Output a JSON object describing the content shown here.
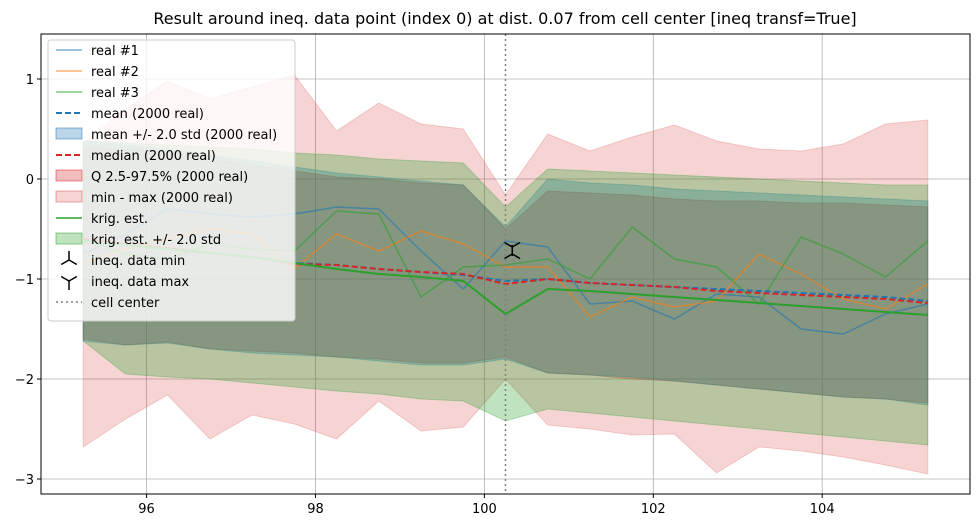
{
  "chart_data": {
    "type": "line",
    "title": "Result around ineq. data point (index 0) at dist. 0.07 from cell center [ineq transf=True]",
    "xlabel": "",
    "ylabel": "",
    "xlim": [
      94.75,
      105.75
    ],
    "ylim": [
      -3.15,
      1.45
    ],
    "xticks": [
      96,
      98,
      100,
      102,
      104
    ],
    "xtick_labels": [
      "96",
      "98",
      "100",
      "102",
      "104"
    ],
    "yticks": [
      1,
      0,
      -1,
      -2,
      -3
    ],
    "ytick_labels": [
      "1",
      "0",
      "−1",
      "−2",
      "−3"
    ],
    "grid": true,
    "legend_position": "top-left",
    "x": [
      95.25,
      95.75,
      96.25,
      96.75,
      97.25,
      97.75,
      98.25,
      98.75,
      99.25,
      99.75,
      100.25,
      100.75,
      101.25,
      101.75,
      102.25,
      102.75,
      103.25,
      103.75,
      104.25,
      104.75,
      105.25
    ],
    "series": [
      {
        "name": "real #1",
        "kind": "line",
        "color": "#1f77b4",
        "style": "solid",
        "alpha": 0.6,
        "values": [
          -0.75,
          -0.55,
          -0.3,
          -0.35,
          -0.38,
          -0.35,
          -0.28,
          -0.3,
          -0.72,
          -1.1,
          -0.62,
          -0.68,
          -1.25,
          -1.22,
          -1.4,
          -1.15,
          -1.18,
          -1.5,
          -1.55,
          -1.35,
          -1.25
        ]
      },
      {
        "name": "real #2",
        "kind": "line",
        "color": "#ff7f0e",
        "style": "solid",
        "alpha": 0.6,
        "values": [
          -0.85,
          -0.7,
          -0.6,
          -0.5,
          -0.55,
          -0.9,
          -0.55,
          -0.72,
          -0.52,
          -0.65,
          -0.88,
          -0.88,
          -1.38,
          -1.18,
          -1.28,
          -1.22,
          -0.75,
          -0.95,
          -1.2,
          -1.3,
          -1.05
        ]
      },
      {
        "name": "real #3",
        "kind": "line",
        "color": "#2ca02c",
        "style": "solid",
        "alpha": 0.6,
        "values": [
          -0.6,
          -0.75,
          -0.8,
          -0.65,
          -0.7,
          -0.72,
          -0.32,
          -0.35,
          -1.18,
          -0.88,
          -0.86,
          -0.8,
          -1.0,
          -0.48,
          -0.8,
          -0.88,
          -1.25,
          -0.58,
          -0.75,
          -0.98,
          -0.62
        ]
      },
      {
        "name": "mean (2000 real)",
        "kind": "line",
        "color": "#1f77b4",
        "style": "dashed",
        "alpha": 1,
        "values": [
          -0.62,
          -0.66,
          -0.7,
          -0.74,
          -0.78,
          -0.84,
          -0.86,
          -0.9,
          -0.93,
          -0.96,
          -1.02,
          -1.0,
          -1.04,
          -1.06,
          -1.08,
          -1.1,
          -1.12,
          -1.14,
          -1.16,
          -1.18,
          -1.22
        ]
      },
      {
        "name": "mean +/- 2.0 std (2000 real)",
        "kind": "band",
        "color": "#1f77b4",
        "alpha": 0.3,
        "lower": [
          -1.62,
          -1.66,
          -1.64,
          -1.7,
          -1.74,
          -1.76,
          -1.78,
          -1.82,
          -1.86,
          -1.86,
          -1.8,
          -1.94,
          -1.96,
          -1.98,
          -2.02,
          -2.06,
          -2.1,
          -2.14,
          -2.18,
          -2.2,
          -2.26
        ],
        "upper": [
          0.38,
          0.34,
          0.3,
          0.24,
          0.18,
          0.12,
          0.06,
          0.02,
          -0.02,
          -0.06,
          -0.48,
          0.0,
          -0.04,
          -0.06,
          -0.1,
          -0.12,
          -0.14,
          -0.16,
          -0.18,
          -0.2,
          -0.22
        ]
      },
      {
        "name": "median (2000 real)",
        "kind": "line",
        "color": "#d62728",
        "style": "dashed",
        "alpha": 1,
        "values": [
          -0.6,
          -0.65,
          -0.69,
          -0.74,
          -0.78,
          -0.85,
          -0.86,
          -0.9,
          -0.93,
          -0.95,
          -1.05,
          -1.0,
          -1.04,
          -1.06,
          -1.08,
          -1.12,
          -1.14,
          -1.16,
          -1.18,
          -1.2,
          -1.24
        ]
      },
      {
        "name": "Q 2.5-97.5% (2000 real)",
        "kind": "band",
        "color": "#d62728",
        "alpha": 0.3,
        "lower": [
          -1.6,
          -1.66,
          -1.63,
          -1.7,
          -1.72,
          -1.74,
          -1.78,
          -1.8,
          -1.84,
          -1.84,
          -1.78,
          -1.94,
          -1.96,
          -2.0,
          -2.02,
          -2.06,
          -2.1,
          -2.14,
          -2.18,
          -2.2,
          -2.24
        ],
        "upper": [
          0.32,
          0.3,
          0.28,
          0.2,
          0.14,
          0.08,
          0.02,
          0.0,
          -0.04,
          -0.06,
          -0.5,
          -0.12,
          -0.14,
          -0.16,
          -0.2,
          -0.22,
          -0.22,
          -0.24,
          -0.24,
          -0.26,
          -0.28
        ]
      },
      {
        "name": "min - max (2000 real)",
        "kind": "band",
        "color": "#d62728",
        "alpha": 0.2,
        "lower": [
          -2.68,
          -2.4,
          -2.16,
          -2.6,
          -2.36,
          -2.45,
          -2.6,
          -2.22,
          -2.52,
          -2.48,
          -2.0,
          -2.46,
          -2.5,
          -2.56,
          -2.55,
          -2.94,
          -2.68,
          -2.72,
          -2.78,
          -2.86,
          -2.95
        ],
        "upper": [
          0.36,
          0.7,
          0.98,
          0.8,
          0.92,
          1.04,
          0.48,
          0.76,
          0.55,
          0.5,
          -0.16,
          0.45,
          0.28,
          0.42,
          0.54,
          0.38,
          0.3,
          0.28,
          0.35,
          0.55,
          0.59
        ]
      },
      {
        "name": "krig. est.",
        "kind": "line",
        "color": "#2ca02c",
        "style": "solid",
        "alpha": 1,
        "values": [
          -0.62,
          -0.66,
          -0.7,
          -0.74,
          -0.78,
          -0.84,
          -0.9,
          -0.95,
          -0.98,
          -1.02,
          -1.35,
          -1.1,
          -1.12,
          -1.15,
          -1.18,
          -1.21,
          -1.24,
          -1.27,
          -1.3,
          -1.33,
          -1.36
        ]
      },
      {
        "name": "krig. est. +/- 2.0 std",
        "kind": "band",
        "color": "#2ca02c",
        "alpha": 0.3,
        "lower": [
          -1.62,
          -1.95,
          -1.98,
          -2.0,
          -2.04,
          -2.08,
          -2.12,
          -2.15,
          -2.2,
          -2.22,
          -2.42,
          -2.3,
          -2.34,
          -2.38,
          -2.42,
          -2.46,
          -2.5,
          -2.54,
          -2.58,
          -2.62,
          -2.66
        ],
        "upper": [
          0.38,
          0.36,
          0.34,
          0.32,
          0.3,
          0.26,
          0.24,
          0.2,
          0.18,
          0.16,
          -0.28,
          0.1,
          0.08,
          0.06,
          0.04,
          0.02,
          0.0,
          -0.02,
          -0.04,
          -0.06,
          -0.06
        ]
      },
      {
        "name": "ineq. data min",
        "kind": "marker",
        "marker": "tri-up",
        "color": "#000000",
        "x": 100.33,
        "y": -0.75
      },
      {
        "name": "ineq. data max",
        "kind": "marker",
        "marker": "tri-down",
        "color": "#000000",
        "x": 100.33,
        "y": -0.68
      },
      {
        "name": "cell center",
        "kind": "vline",
        "color": "#7f7f7f",
        "style": "dotted",
        "x": 100.25
      }
    ]
  }
}
